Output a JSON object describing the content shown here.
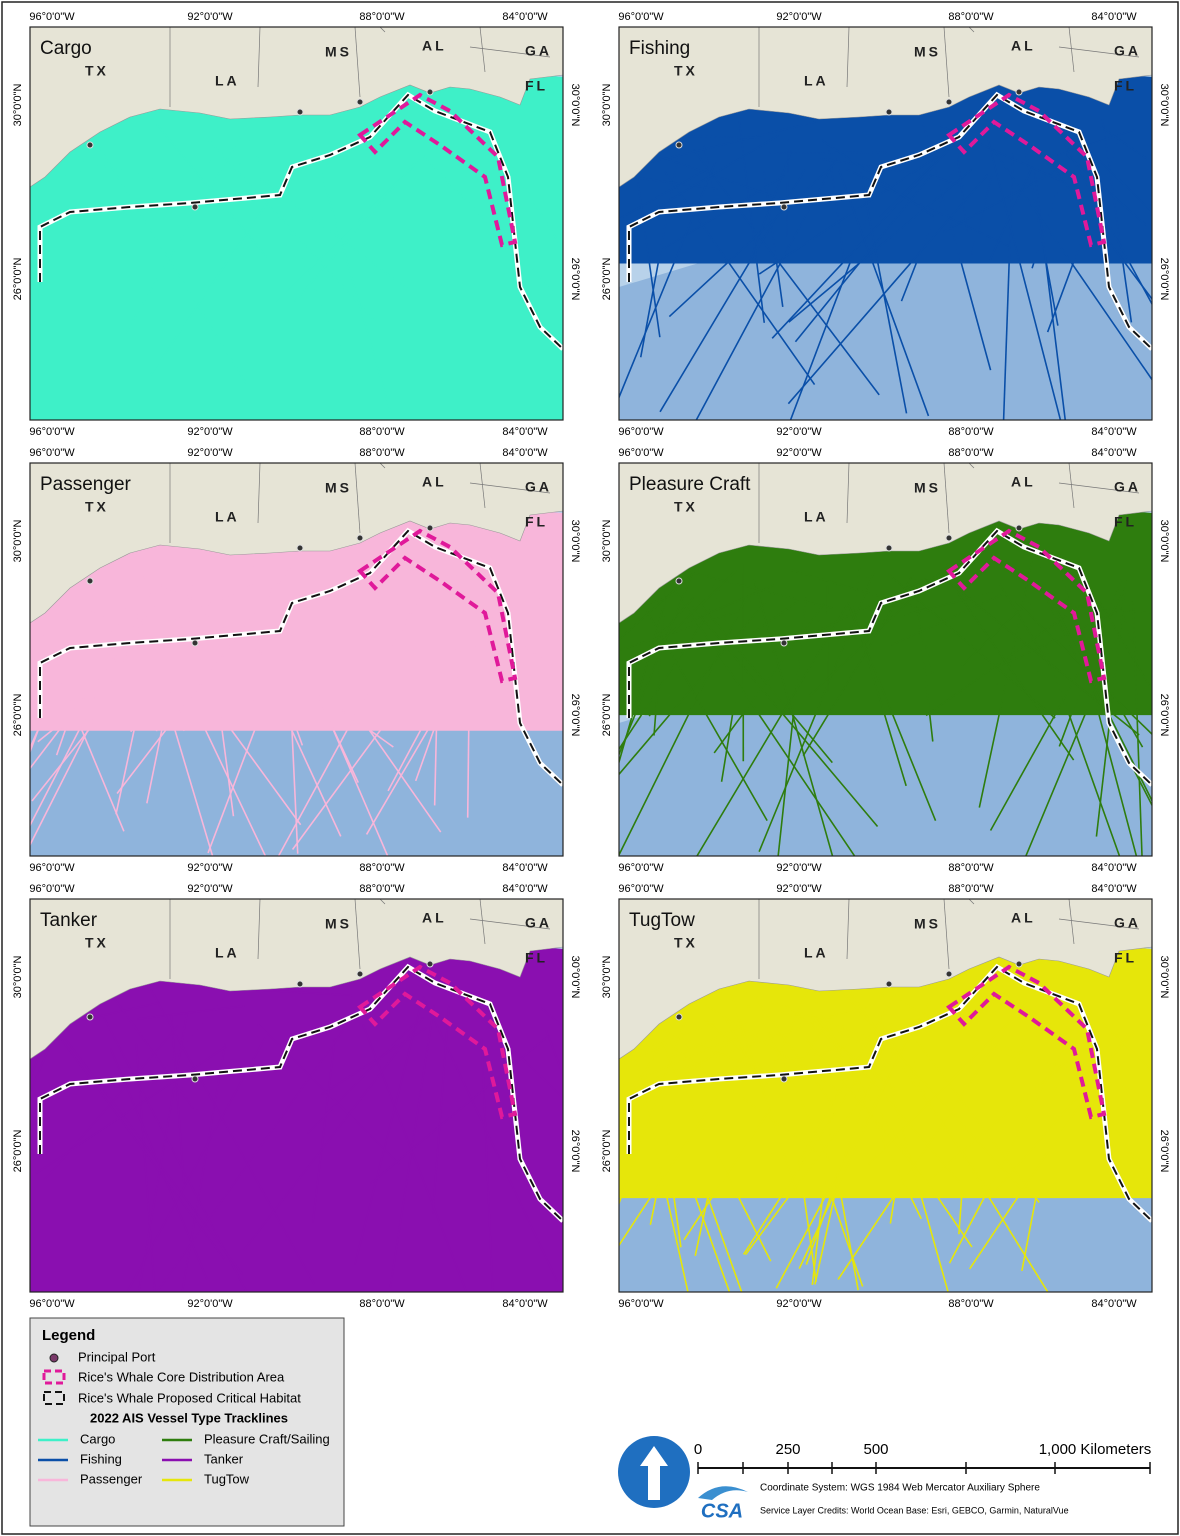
{
  "panels": [
    {
      "title": "Cargo"
    },
    {
      "title": "Fishing"
    },
    {
      "title": "Passenger"
    },
    {
      "title": "Pleasure Craft"
    },
    {
      "title": "Tanker"
    },
    {
      "title": "TugTow"
    }
  ],
  "axis_labels": {
    "longitude": [
      "96°0'0\"W",
      "92°0'0\"W",
      "88°0'0\"W",
      "84°0'0\"W"
    ],
    "latitude": [
      "30°0'0\"N",
      "26°0'0\"N"
    ]
  },
  "state_labels": [
    "TX",
    "LA",
    "MS",
    "AL",
    "GA",
    "FL"
  ],
  "legend": {
    "title": "Legend",
    "symbols": [
      "Principal Port",
      "Rice's Whale Core Distribution Area",
      "Rice's Whale Proposed Critical Habitat"
    ],
    "subtitle": "2022 AIS Vessel Type Tracklines",
    "items": [
      {
        "name": "Cargo",
        "color": "#3ef0c8"
      },
      {
        "name": "Fishing",
        "color": "#0a4fa8"
      },
      {
        "name": "Passenger",
        "color": "#f8b6da"
      },
      {
        "name": "Pleasure Craft/Sailing",
        "color": "#2e7d0e"
      },
      {
        "name": "Tanker",
        "color": "#8a0fb0"
      },
      {
        "name": "TugTow",
        "color": "#e6e60a"
      }
    ]
  },
  "scale_bar": {
    "labels": [
      "0",
      "250",
      "500",
      "1,000 Kilometers"
    ]
  },
  "logo": "CSA",
  "credits": [
    "Coordinate System: WGS 1984 Web Mercator Auxiliary Sphere",
    "Service Layer Credits: World Ocean Base: Esri, GEBCO, Garmin, NaturalVue"
  ]
}
